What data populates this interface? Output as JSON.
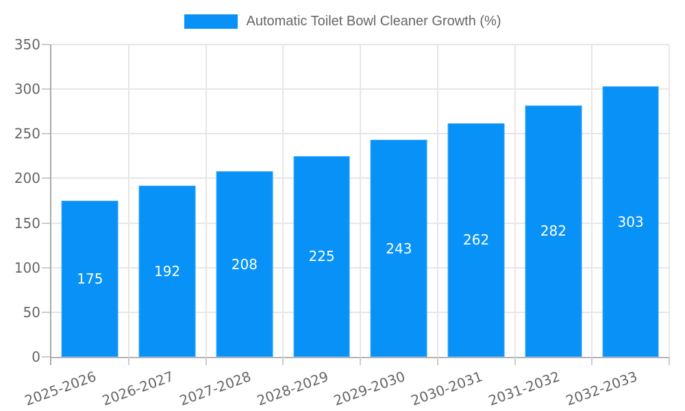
{
  "legend": {
    "label": "Automatic Toilet Bowl Cleaner Growth (%)"
  },
  "colors": {
    "background": "#ffffff",
    "bar": "#0892f8",
    "bar_label_text": "#ffffff",
    "grid": "#e6e6e6",
    "tick_mark": "#cccccc",
    "y_axis": "#a8a8a8",
    "x_axis": "#b3b3b3",
    "text": "#666666"
  },
  "chart_data": {
    "type": "bar",
    "title": "Automatic Toilet Bowl Cleaner Growth (%)",
    "xlabel": "",
    "ylabel": "",
    "categories": [
      "2025-2026",
      "2026-2027",
      "2027-2028",
      "2028-2029",
      "2029-2030",
      "2030-2031",
      "2031-2032",
      "2032-2033"
    ],
    "values": [
      175,
      192,
      208,
      225,
      243,
      262,
      282,
      303
    ],
    "series_name": "Automatic Toilet Bowl Cleaner Growth (%)",
    "ylim": [
      0,
      350
    ],
    "yticks": [
      0,
      50,
      100,
      150,
      200,
      250,
      300,
      350
    ],
    "grid": "horizontal and vertical",
    "legend_position": "top-center",
    "bar_value_labels": "inside, centered, white",
    "x_tick_label_rotation_deg": -20
  }
}
